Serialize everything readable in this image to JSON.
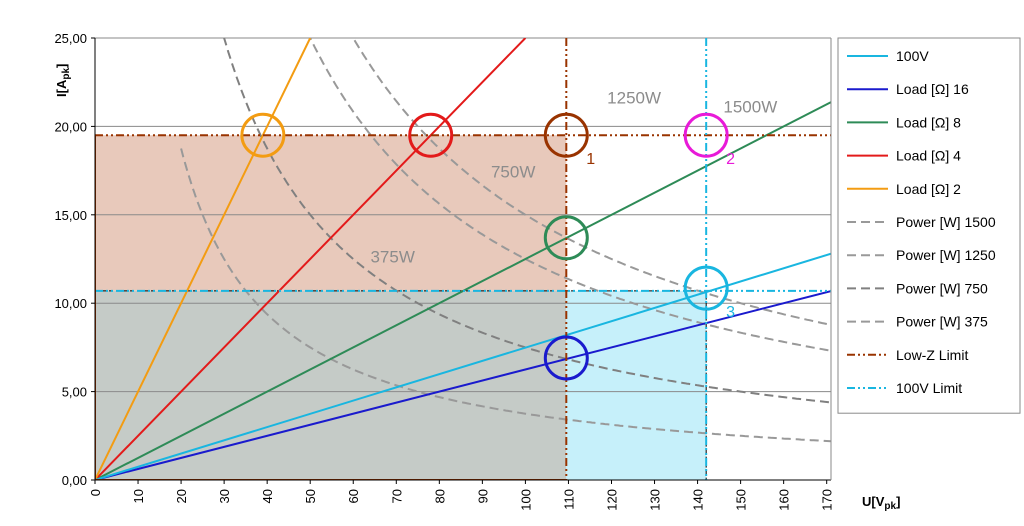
{
  "chart_data": {
    "type": "line",
    "xlabel": "U[V",
    "xlabel_sub": "pk",
    "xlabel_end": "]",
    "ylabel": "I[A",
    "ylabel_sub": "pk",
    "ylabel_end": "]",
    "xlim": [
      0,
      171
    ],
    "ylim": [
      0,
      25
    ],
    "x_ticks": [
      0,
      10,
      20,
      30,
      40,
      50,
      60,
      70,
      80,
      90,
      100,
      110,
      120,
      130,
      140,
      150,
      160,
      170
    ],
    "y_ticks": [
      0,
      5,
      10,
      15,
      20,
      25
    ],
    "y_tick_labels": [
      "0,00",
      "5,00",
      "10,00",
      "15,00",
      "20,00",
      "25,00"
    ],
    "grid": "horizontal",
    "legend_position": "right",
    "load_series": [
      {
        "name": "Load [Ω] 16",
        "ohms": 16,
        "color": "#1a1acd"
      },
      {
        "name": "Load [Ω] 8",
        "ohms": 8,
        "color": "#2e8b57"
      },
      {
        "name": "Load [Ω] 4",
        "ohms": 4,
        "color": "#e31a1a"
      },
      {
        "name": "Load [Ω] 2",
        "ohms": 2,
        "color": "#f39c12"
      }
    ],
    "line_100v": {
      "name": "100V",
      "color": "#19b6e0",
      "points": [
        [
          0,
          0
        ],
        [
          171,
          12.8
        ]
      ]
    },
    "power_series": [
      {
        "name": "Power [W] 1500",
        "watts": 1500,
        "color": "#999999"
      },
      {
        "name": "Power [W] 1250",
        "watts": 1250,
        "color": "#999999"
      },
      {
        "name": "Power [W] 750",
        "watts": 750,
        "color": "#808080"
      },
      {
        "name": "Power [W] 375",
        "watts": 375,
        "color": "#999999"
      }
    ],
    "power_labels": [
      {
        "text": "1250W",
        "x": 119,
        "y": 21.3
      },
      {
        "text": "1500W",
        "x": 146,
        "y": 20.8
      },
      {
        "text": "750W",
        "x": 92,
        "y": 17.1
      },
      {
        "text": "375W",
        "x": 64,
        "y": 12.3
      }
    ],
    "limits": {
      "low_z": {
        "name": "Low-Z Limit",
        "voltage": 109.5,
        "current": 19.5,
        "color": "#993300"
      },
      "v100": {
        "name": "100V Limit",
        "voltage": 142,
        "current": 10.7,
        "color": "#19b6e0"
      }
    },
    "regions": [
      {
        "x": [
          0,
          109.5
        ],
        "y": [
          10.7,
          19.5
        ],
        "color": "#e8c9bb"
      },
      {
        "x": [
          0,
          109.5
        ],
        "y": [
          0,
          10.7
        ],
        "color": "#c5cbc7"
      },
      {
        "x": [
          109.5,
          142
        ],
        "y": [
          0,
          10.7
        ],
        "color": "#c6f0fa"
      }
    ],
    "markers": [
      {
        "x": 39,
        "y": 19.5,
        "color": "#f39c12",
        "label": ""
      },
      {
        "x": 78,
        "y": 19.5,
        "color": "#e31a1a",
        "label": ""
      },
      {
        "x": 109.5,
        "y": 19.5,
        "color": "#993300",
        "label": "1"
      },
      {
        "x": 142,
        "y": 19.5,
        "color": "#e81ad8",
        "label": "2"
      },
      {
        "x": 109.5,
        "y": 13.7,
        "color": "#2e8b57",
        "label": ""
      },
      {
        "x": 142,
        "y": 10.85,
        "color": "#19b6e0",
        "label": "3"
      },
      {
        "x": 109.5,
        "y": 6.9,
        "color": "#1a1acd",
        "label": ""
      }
    ],
    "legend": [
      {
        "label": "100V",
        "color": "#19b6e0",
        "style": "solid"
      },
      {
        "label": "Load [Ω] 16",
        "color": "#1a1acd",
        "style": "solid"
      },
      {
        "label": "Load [Ω] 8",
        "color": "#2e8b57",
        "style": "solid"
      },
      {
        "label": "Load [Ω] 4",
        "color": "#e31a1a",
        "style": "solid"
      },
      {
        "label": "Load [Ω] 2",
        "color": "#f39c12",
        "style": "solid"
      },
      {
        "label": "Power [W] 1500",
        "color": "#999999",
        "style": "dashed"
      },
      {
        "label": "Power [W] 1250",
        "color": "#999999",
        "style": "dashed"
      },
      {
        "label": "Power [W] 750",
        "color": "#808080",
        "style": "dashed"
      },
      {
        "label": "Power [W] 375",
        "color": "#999999",
        "style": "dashed"
      },
      {
        "label": "Low-Z Limit",
        "color": "#993300",
        "style": "dashdotdot"
      },
      {
        "label": "100V Limit",
        "color": "#19b6e0",
        "style": "dashdotdot"
      }
    ]
  }
}
